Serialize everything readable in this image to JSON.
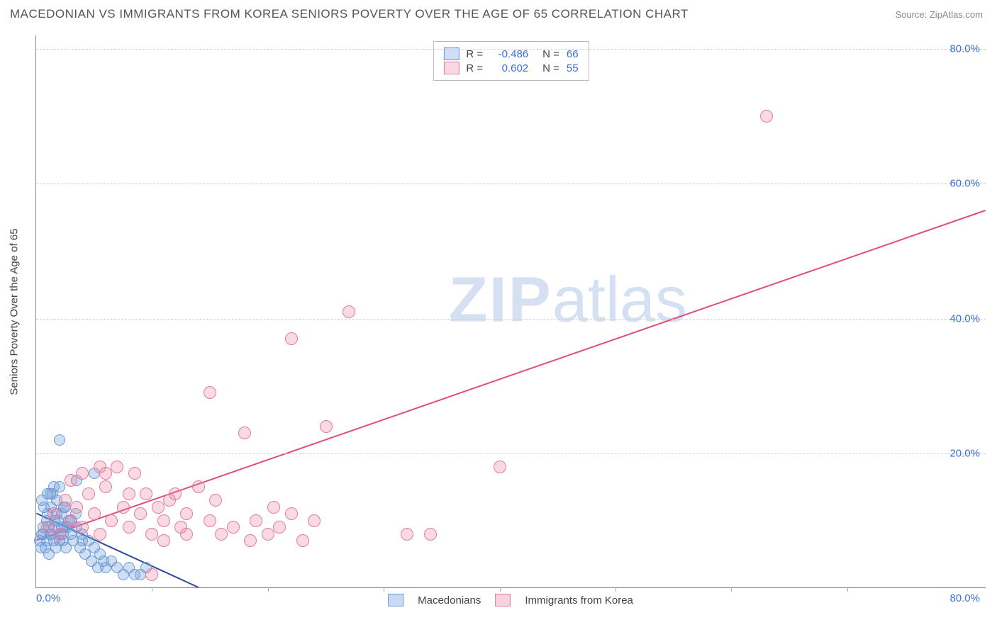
{
  "title": "MACEDONIAN VS IMMIGRANTS FROM KOREA SENIORS POVERTY OVER THE AGE OF 65 CORRELATION CHART",
  "source": "Source: ZipAtlas.com",
  "watermark_bold": "ZIP",
  "watermark_rest": "atlas",
  "y_axis_label": "Seniors Poverty Over the Age of 65",
  "chart": {
    "type": "scatter",
    "xlim": [
      0,
      82
    ],
    "ylim": [
      0,
      82
    ],
    "x_ticks": [
      {
        "v": 0,
        "lbl": "0.0%"
      },
      {
        "v": 80,
        "lbl": "80.0%"
      }
    ],
    "y_ticks": [
      {
        "v": 20,
        "lbl": "20.0%"
      },
      {
        "v": 40,
        "lbl": "40.0%"
      },
      {
        "v": 60,
        "lbl": "60.0%"
      },
      {
        "v": 80,
        "lbl": "80.0%"
      }
    ],
    "vticks": [
      10,
      20,
      30,
      40,
      50,
      60,
      70
    ],
    "grid_color": "#d0d0d0",
    "background_color": "#ffffff",
    "point_radius": 8,
    "point_radius_alt": 9,
    "series": [
      {
        "name": "Macedonians",
        "color_fill": "rgba(120,160,220,0.35)",
        "color_stroke": "#6a9ad6",
        "R": "-0.486",
        "N": "66",
        "trend": {
          "x1": 0,
          "y1": 11,
          "x2": 14,
          "y2": 0,
          "color": "#2b4a9a",
          "width": 2
        },
        "points": [
          [
            0.3,
            7
          ],
          [
            0.5,
            8
          ],
          [
            0.6,
            9
          ],
          [
            0.8,
            6
          ],
          [
            0.9,
            10
          ],
          [
            1.0,
            11
          ],
          [
            1.1,
            5
          ],
          [
            1.2,
            8
          ],
          [
            1.3,
            12
          ],
          [
            1.4,
            14
          ],
          [
            1.5,
            7
          ],
          [
            1.6,
            9
          ],
          [
            1.7,
            6
          ],
          [
            1.8,
            13
          ],
          [
            1.9,
            10
          ],
          [
            2.0,
            15
          ],
          [
            2.1,
            8
          ],
          [
            2.2,
            11
          ],
          [
            2.3,
            7
          ],
          [
            2.4,
            12
          ],
          [
            2.5,
            9
          ],
          [
            2.6,
            6
          ],
          [
            2.8,
            10
          ],
          [
            3.0,
            8
          ],
          [
            3.2,
            7
          ],
          [
            3.4,
            11
          ],
          [
            3.5,
            9
          ],
          [
            3.8,
            6
          ],
          [
            4.0,
            8
          ],
          [
            4.2,
            5
          ],
          [
            4.5,
            7
          ],
          [
            4.8,
            4
          ],
          [
            5.0,
            6
          ],
          [
            5.3,
            3
          ],
          [
            5.5,
            5
          ],
          [
            5.8,
            4
          ],
          [
            6.0,
            3
          ],
          [
            6.5,
            4
          ],
          [
            7.0,
            3
          ],
          [
            7.5,
            2
          ],
          [
            8.0,
            3
          ],
          [
            8.5,
            2
          ],
          [
            9.0,
            2
          ],
          [
            9.5,
            3
          ],
          [
            2.0,
            22
          ],
          [
            1.0,
            14
          ],
          [
            1.5,
            15
          ],
          [
            0.5,
            13
          ],
          [
            0.7,
            12
          ],
          [
            1.2,
            14
          ],
          [
            1.8,
            11
          ],
          [
            2.2,
            9
          ],
          [
            2.5,
            12
          ],
          [
            0.4,
            6
          ],
          [
            0.6,
            8
          ],
          [
            0.9,
            7
          ],
          [
            1.1,
            9
          ],
          [
            1.3,
            8
          ],
          [
            1.6,
            10
          ],
          [
            2.0,
            7
          ],
          [
            2.3,
            8
          ],
          [
            2.7,
            9
          ],
          [
            3.0,
            10
          ],
          [
            3.5,
            16
          ],
          [
            4.0,
            7
          ],
          [
            5.0,
            17
          ]
        ]
      },
      {
        "name": "Immigrants from Korea",
        "color_fill": "rgba(235,130,160,0.30)",
        "color_stroke": "#e57aa0",
        "R": "0.602",
        "N": "55",
        "trend": {
          "x1": 0,
          "y1": 7,
          "x2": 82,
          "y2": 56,
          "color": "#e04d7f",
          "width": 2
        },
        "points": [
          [
            1.0,
            9
          ],
          [
            1.5,
            11
          ],
          [
            2.0,
            8
          ],
          [
            2.5,
            13
          ],
          [
            3.0,
            10
          ],
          [
            3.5,
            12
          ],
          [
            4.0,
            9
          ],
          [
            4.5,
            14
          ],
          [
            5.0,
            11
          ],
          [
            5.5,
            8
          ],
          [
            6.0,
            15
          ],
          [
            6.5,
            10
          ],
          [
            7.0,
            18
          ],
          [
            7.5,
            12
          ],
          [
            8.0,
            9
          ],
          [
            8.5,
            17
          ],
          [
            9.0,
            11
          ],
          [
            9.5,
            14
          ],
          [
            10.0,
            8
          ],
          [
            10.5,
            12
          ],
          [
            11.0,
            10
          ],
          [
            11.5,
            13
          ],
          [
            12.0,
            14
          ],
          [
            12.5,
            9
          ],
          [
            13.0,
            11
          ],
          [
            14.0,
            15
          ],
          [
            15.0,
            10
          ],
          [
            15.5,
            13
          ],
          [
            16.0,
            8
          ],
          [
            17.0,
            9
          ],
          [
            18.0,
            23
          ],
          [
            18.5,
            7
          ],
          [
            19.0,
            10
          ],
          [
            20.0,
            8
          ],
          [
            20.5,
            12
          ],
          [
            21.0,
            9
          ],
          [
            22.0,
            11
          ],
          [
            23.0,
            7
          ],
          [
            24.0,
            10
          ],
          [
            15.0,
            29
          ],
          [
            25.0,
            24
          ],
          [
            22.0,
            37
          ],
          [
            27.0,
            41
          ],
          [
            10.0,
            2
          ],
          [
            34.0,
            8
          ],
          [
            40.0,
            18
          ],
          [
            63.0,
            70
          ],
          [
            5.5,
            18
          ],
          [
            6.0,
            17
          ],
          [
            3.0,
            16
          ],
          [
            4.0,
            17
          ],
          [
            8.0,
            14
          ],
          [
            11.0,
            7
          ],
          [
            13.0,
            8
          ],
          [
            32.0,
            8
          ]
        ]
      }
    ]
  },
  "legend_bottom": [
    {
      "label": "Macedonians",
      "swatch_fill": "rgba(120,160,220,0.4)",
      "swatch_stroke": "#6a9ad6"
    },
    {
      "label": "Immigrants from Korea",
      "swatch_fill": "rgba(235,130,160,0.35)",
      "swatch_stroke": "#e57aa0"
    }
  ]
}
